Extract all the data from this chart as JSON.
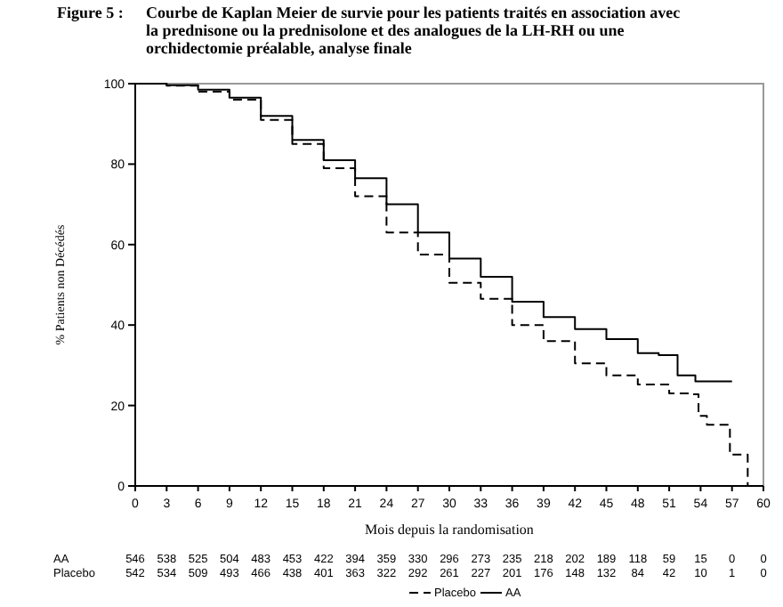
{
  "chart_data": {
    "type": "step",
    "title": "Figure 5 :",
    "subtitle": "Courbe de Kaplan Meier de survie pour les patients traités en association avec la prednisone ou la prednisolone et des analogues de la LH-RH ou une orchidectomie préalable, analyse finale",
    "xlabel": "Mois depuis la randomisation",
    "ylabel": "% Patients non Décédés",
    "xlim": [
      0,
      60
    ],
    "xticks": [
      0,
      3,
      6,
      9,
      12,
      15,
      18,
      21,
      24,
      27,
      30,
      33,
      36,
      39,
      42,
      45,
      48,
      51,
      54,
      57,
      60
    ],
    "ylim": [
      0,
      100
    ],
    "yticks": [
      0,
      20,
      40,
      60,
      80,
      100
    ],
    "grid": false,
    "legend": "bottom",
    "series": [
      {
        "name": "AA",
        "color": "#000000",
        "line_style": "solid",
        "x": [
          0,
          3,
          6,
          9,
          12,
          15,
          18,
          21,
          24,
          27,
          30,
          33,
          36,
          39,
          42,
          45,
          48,
          50,
          51.8,
          53.5,
          57
        ],
        "values": [
          100,
          99.6,
          98.5,
          96.5,
          92,
          86,
          81,
          76.5,
          70,
          63,
          56.5,
          52,
          45.8,
          42,
          39,
          36.5,
          33,
          32.5,
          27.5,
          26,
          26
        ]
      },
      {
        "name": "Placebo",
        "color": "#000000",
        "line_style": "dashed",
        "x": [
          0,
          3,
          6,
          9,
          12,
          15,
          18,
          21,
          24,
          27,
          30,
          33,
          36,
          39,
          42,
          45,
          48,
          51,
          53,
          53.8,
          54.6,
          56.8,
          58.5
        ],
        "values": [
          100,
          99.5,
          98,
          96,
          91,
          85,
          79,
          72,
          63,
          57.5,
          50.5,
          46.5,
          40,
          36,
          30.5,
          27.5,
          25.2,
          23,
          22.8,
          17.4,
          15.2,
          7.8,
          0
        ]
      }
    ],
    "annotations": [
      "AA 546 538 525 504 483 453 422 394 359 330 296 273 235 218 202 189 118 59 15 0 0",
      "Placebo 542 534 509 493 466 438 401 363 322 292 261 227 201 176 148 132 84 42 10 1 0"
    ]
  }
}
